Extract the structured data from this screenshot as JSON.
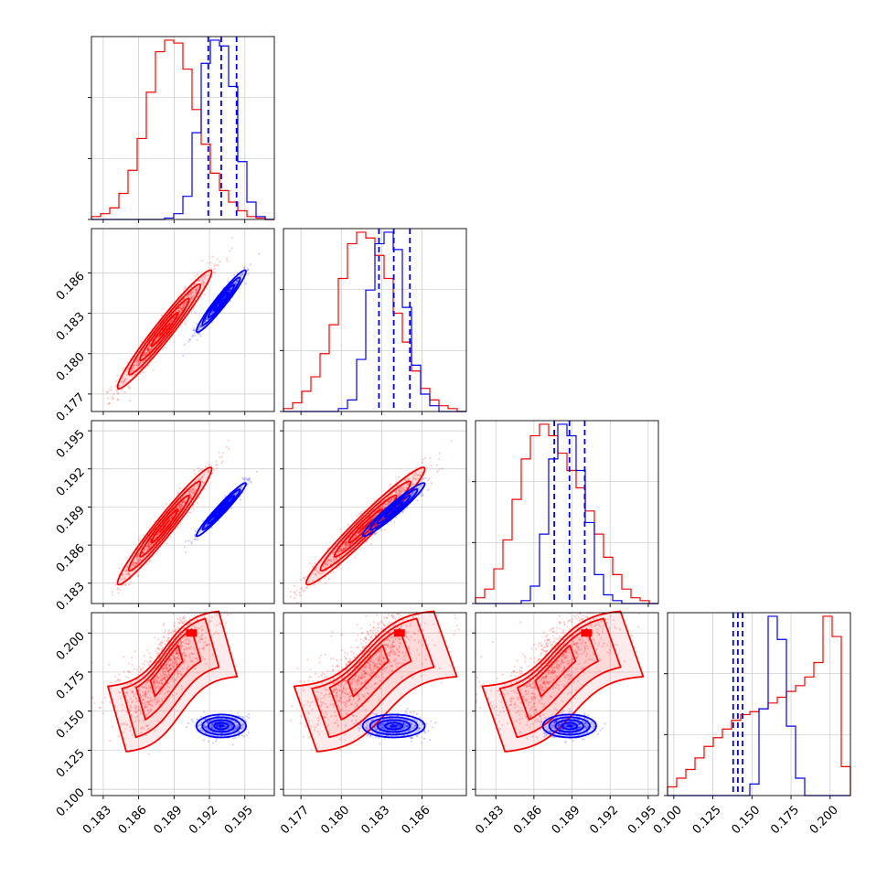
{
  "chart_data": {
    "type": "corner",
    "title": "",
    "grid": true,
    "colors": {
      "red": "#ff0000",
      "blue": "#0000ff"
    },
    "params": [
      {
        "range": [
          0.182,
          0.1975
        ],
        "ticks": [
          0.183,
          0.186,
          0.189,
          0.192,
          0.195
        ],
        "tick_labels": [
          "0.183",
          "0.186",
          "0.189",
          "0.192",
          "0.195"
        ],
        "red": {
          "mean": 0.1882,
          "std": 0.0019
        },
        "blue": {
          "mean": 0.193,
          "std": 0.001,
          "quantiles": [
            0.1919,
            0.193,
            0.1943
          ]
        }
      },
      {
        "range": [
          0.1757,
          0.1893
        ],
        "ticks": [
          0.177,
          0.18,
          0.183,
          0.186
        ],
        "tick_labels": [
          "0.177",
          "0.180",
          "0.183",
          "0.186"
        ],
        "red": {
          "mean": 0.1818,
          "std": 0.0021
        },
        "blue": {
          "mean": 0.1839,
          "std": 0.0011,
          "quantiles": [
            0.1828,
            0.1839,
            0.1851
          ]
        }
      },
      {
        "range": [
          0.1814,
          0.1958
        ],
        "ticks": [
          0.183,
          0.186,
          0.189,
          0.192,
          0.195
        ],
        "tick_labels": [
          "0.183",
          "0.186",
          "0.189",
          "0.192",
          "0.195"
        ],
        "red": {
          "mean": 0.1875,
          "std": 0.0022
        },
        "blue": {
          "mean": 0.1888,
          "std": 0.001,
          "quantiles": [
            0.1876,
            0.1888,
            0.19
          ]
        }
      },
      {
        "range": [
          0.096,
          0.213
        ],
        "ticks": [
          0.1,
          0.125,
          0.15,
          0.175,
          0.2
        ],
        "tick_labels": [
          "0.100",
          "0.125",
          "0.150",
          "0.175",
          "0.200"
        ],
        "red": {
          "mean": 0.175,
          "std": 0.027
        },
        "blue": {
          "mean": 0.1405,
          "std": 0.0035,
          "quantiles": [
            0.138,
            0.141,
            0.144
          ]
        }
      }
    ],
    "histograms": [
      {
        "param": 0,
        "red": [
          1,
          2,
          4,
          9,
          17,
          28,
          44,
          58,
          62,
          61,
          52,
          38,
          26,
          16,
          10,
          6,
          3,
          1,
          0.5,
          0
        ],
        "blue": [
          0,
          0,
          0,
          0,
          0,
          0,
          0,
          0,
          0.5,
          2,
          8,
          30,
          54,
          62,
          60,
          46,
          20,
          6,
          1,
          0
        ]
      },
      {
        "param": 1,
        "red": [
          1,
          3,
          7,
          12,
          20,
          30,
          46,
          58,
          62,
          60,
          54,
          46,
          34,
          24,
          14,
          8,
          4,
          2,
          1,
          0
        ],
        "blue": [
          0,
          0,
          0,
          0,
          0,
          0,
          1,
          4,
          18,
          42,
          58,
          62,
          56,
          36,
          16,
          6,
          2,
          0,
          0,
          0
        ]
      },
      {
        "param": 2,
        "red": [
          2,
          5,
          12,
          22,
          36,
          50,
          58,
          62,
          58,
          52,
          46,
          40,
          32,
          24,
          16,
          10,
          5,
          2,
          1,
          0
        ],
        "blue": [
          0,
          0,
          0,
          0,
          0,
          1,
          6,
          24,
          50,
          62,
          58,
          46,
          28,
          10,
          3,
          1,
          0,
          0,
          0,
          0
        ]
      },
      {
        "param": 3,
        "red": [
          3,
          6,
          9,
          13,
          17,
          20,
          23,
          26,
          28,
          29,
          30,
          32,
          34,
          36,
          38,
          41,
          46,
          62,
          55,
          10
        ],
        "blue": [
          0,
          0,
          0,
          0,
          0,
          0,
          0,
          0,
          0,
          4,
          30,
          62,
          54,
          24,
          6,
          0,
          0,
          0,
          0,
          0
        ]
      }
    ],
    "scatter_panels": [
      {
        "x_param": 0,
        "y_param": 1,
        "red_corr": 0.97,
        "blue_corr": 0.96
      },
      {
        "x_param": 0,
        "y_param": 2,
        "red_corr": 0.97,
        "blue_corr": 0.97
      },
      {
        "x_param": 1,
        "y_param": 2,
        "red_corr": 0.97,
        "blue_corr": 0.96
      },
      {
        "x_param": 0,
        "y_param": 3,
        "red_corr": 0.55,
        "blue_corr": 0.0
      },
      {
        "x_param": 1,
        "y_param": 3,
        "red_corr": 0.55,
        "blue_corr": 0.0
      },
      {
        "x_param": 2,
        "y_param": 3,
        "red_corr": 0.55,
        "blue_corr": 0.0
      }
    ]
  }
}
